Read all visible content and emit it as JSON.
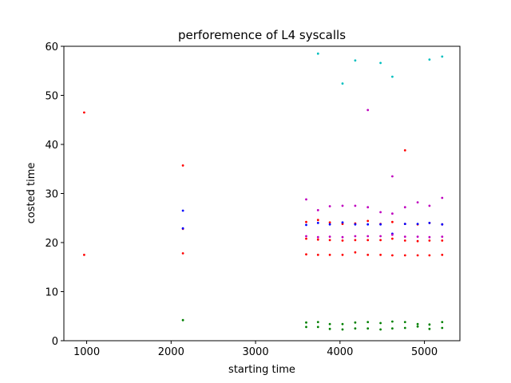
{
  "chart_data": {
    "type": "scatter",
    "title": "perforemence of L4 syscalls",
    "xlabel": "starting time",
    "ylabel": "costed time",
    "xlim": [
      730,
      5420
    ],
    "ylim": [
      0,
      60
    ],
    "xticks": [
      1000,
      2000,
      3000,
      4000,
      5000
    ],
    "yticks": [
      0,
      10,
      20,
      30,
      40,
      50,
      60
    ],
    "grid": false,
    "series": [
      {
        "color": "#ff0000",
        "points": [
          [
            970,
            46.5
          ],
          [
            970,
            17.5
          ],
          [
            2140,
            35.7
          ],
          [
            2140,
            22.8
          ],
          [
            2140,
            17.8
          ],
          [
            3600,
            24.2
          ],
          [
            3600,
            17.6
          ],
          [
            3600,
            20.8
          ],
          [
            3740,
            24.6
          ],
          [
            3740,
            17.5
          ],
          [
            3740,
            20.6
          ],
          [
            3880,
            24.1
          ],
          [
            3880,
            17.5
          ],
          [
            3880,
            20.5
          ],
          [
            4030,
            23.8
          ],
          [
            4030,
            17.5
          ],
          [
            4030,
            20.4
          ],
          [
            4180,
            23.9
          ],
          [
            4180,
            18.0
          ],
          [
            4180,
            20.5
          ],
          [
            4330,
            24.4
          ],
          [
            4330,
            17.5
          ],
          [
            4330,
            20.5
          ],
          [
            4480,
            23.8
          ],
          [
            4480,
            17.5
          ],
          [
            4480,
            20.5
          ],
          [
            4620,
            24.2
          ],
          [
            4620,
            17.4
          ],
          [
            4620,
            20.8
          ],
          [
            4770,
            38.8
          ],
          [
            4770,
            17.4
          ],
          [
            4770,
            20.4
          ],
          [
            4770,
            23.8
          ],
          [
            4920,
            23.7
          ],
          [
            4920,
            17.4
          ],
          [
            4920,
            20.3
          ],
          [
            5060,
            24.0
          ],
          [
            5060,
            17.4
          ],
          [
            5060,
            20.4
          ],
          [
            5210,
            23.7
          ],
          [
            5210,
            17.5
          ],
          [
            5210,
            20.4
          ]
        ]
      },
      {
        "color": "#0000ff",
        "points": [
          [
            2140,
            26.5
          ],
          [
            2140,
            22.9
          ],
          [
            3600,
            23.6
          ],
          [
            3740,
            24.0
          ],
          [
            3880,
            23.7
          ],
          [
            4030,
            24.1
          ],
          [
            4180,
            23.7
          ],
          [
            4330,
            23.7
          ],
          [
            4480,
            23.7
          ],
          [
            4620,
            21.8
          ],
          [
            4770,
            23.8
          ],
          [
            4920,
            23.8
          ],
          [
            5060,
            24.0
          ],
          [
            5210,
            23.7
          ]
        ]
      },
      {
        "color": "#bf00bf",
        "points": [
          [
            3600,
            28.8
          ],
          [
            3600,
            21.3
          ],
          [
            3740,
            26.6
          ],
          [
            3740,
            21.1
          ],
          [
            3880,
            27.4
          ],
          [
            3880,
            21.2
          ],
          [
            4030,
            27.5
          ],
          [
            4030,
            21.1
          ],
          [
            4180,
            27.5
          ],
          [
            4180,
            21.3
          ],
          [
            4330,
            47.0
          ],
          [
            4330,
            27.2
          ],
          [
            4330,
            21.3
          ],
          [
            4480,
            26.2
          ],
          [
            4480,
            21.3
          ],
          [
            4620,
            33.5
          ],
          [
            4620,
            25.9
          ],
          [
            4620,
            21.6
          ],
          [
            4770,
            27.2
          ],
          [
            4770,
            21.2
          ],
          [
            4920,
            28.2
          ],
          [
            4920,
            21.2
          ],
          [
            5060,
            27.5
          ],
          [
            5060,
            21.1
          ],
          [
            5210,
            29.1
          ],
          [
            5210,
            21.2
          ]
        ]
      },
      {
        "color": "#00bfbf",
        "points": [
          [
            3740,
            58.5
          ],
          [
            4030,
            52.4
          ],
          [
            4180,
            57.1
          ],
          [
            4480,
            56.6
          ],
          [
            4620,
            53.8
          ],
          [
            5060,
            57.3
          ],
          [
            5210,
            57.9
          ]
        ]
      },
      {
        "color": "#008000",
        "points": [
          [
            2140,
            4.2
          ],
          [
            3600,
            3.7
          ],
          [
            3600,
            2.8
          ],
          [
            3740,
            3.8
          ],
          [
            3740,
            2.8
          ],
          [
            3880,
            3.4
          ],
          [
            3880,
            2.4
          ],
          [
            4030,
            3.4
          ],
          [
            4030,
            2.3
          ],
          [
            4180,
            3.7
          ],
          [
            4180,
            2.5
          ],
          [
            4330,
            3.8
          ],
          [
            4330,
            2.5
          ],
          [
            4480,
            3.6
          ],
          [
            4480,
            2.3
          ],
          [
            4620,
            3.9
          ],
          [
            4620,
            2.5
          ],
          [
            4770,
            3.8
          ],
          [
            4770,
            2.6
          ],
          [
            4920,
            3.4
          ],
          [
            4920,
            2.9
          ],
          [
            5060,
            3.3
          ],
          [
            5060,
            2.4
          ],
          [
            5210,
            3.8
          ],
          [
            5210,
            2.6
          ]
        ]
      }
    ]
  }
}
